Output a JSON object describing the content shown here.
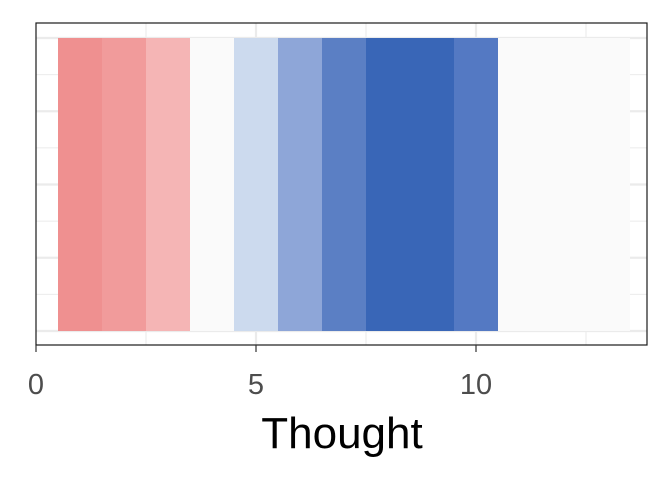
{
  "chart_data": {
    "type": "heatmap",
    "title": "",
    "xlabel": "Thought",
    "ylabel": "",
    "xlim": [
      0,
      14
    ],
    "x_ticks": [
      0,
      5,
      10
    ],
    "x_tick_labels": [
      "0",
      "5",
      "10"
    ],
    "grid": true,
    "legend": "none",
    "tiles": [
      {
        "x": 1,
        "color": "#ef9090"
      },
      {
        "x": 2,
        "color": "#f19b9b"
      },
      {
        "x": 3,
        "color": "#f5b5b5"
      },
      {
        "x": 4,
        "color": "#fafafa"
      },
      {
        "x": 5,
        "color": "#ccdaee"
      },
      {
        "x": 6,
        "color": "#8ea6d8"
      },
      {
        "x": 7,
        "color": "#5b7fc4"
      },
      {
        "x": 8,
        "color": "#3966b7"
      },
      {
        "x": 9,
        "color": "#3966b7"
      },
      {
        "x": 10,
        "color": "#5479c3"
      },
      {
        "x": 11,
        "color": "#fafafa"
      },
      {
        "x": 12,
        "color": "#fafafa"
      },
      {
        "x": 13,
        "color": "#fafafa"
      }
    ]
  }
}
